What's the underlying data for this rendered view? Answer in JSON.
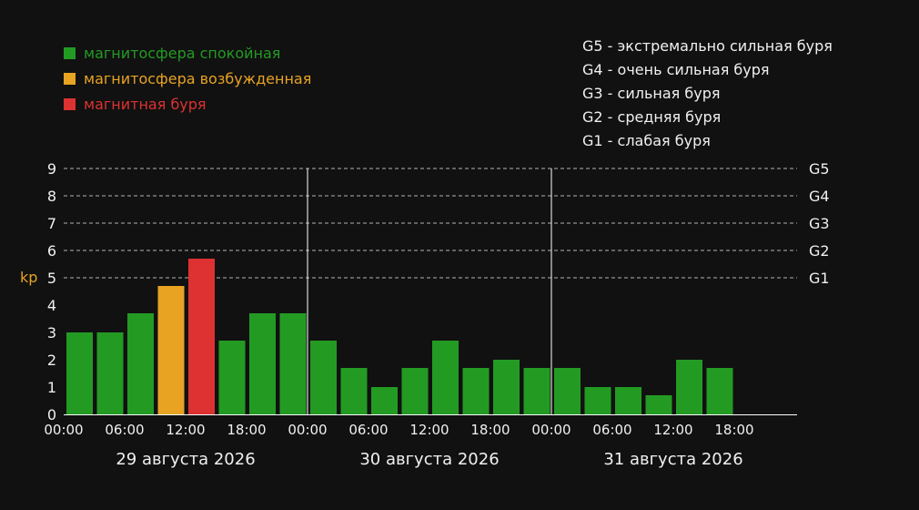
{
  "legend": [
    {
      "label": "магнитосфера спокойная",
      "color": "#239b23"
    },
    {
      "label": "магнитосфера возбужденная",
      "color": "#e8a323"
    },
    {
      "label": "магнитная буря",
      "color": "#de3131"
    }
  ],
  "storm_scale": [
    {
      "level": "G5",
      "text": "G5 - экстремально сильная буря"
    },
    {
      "level": "G4",
      "text": "G4 - очень сильная буря"
    },
    {
      "level": "G3",
      "text": "G3 - сильная буря"
    },
    {
      "level": "G2",
      "text": "G2 - средняя буря"
    },
    {
      "level": "G1",
      "text": "G1 - слабая буря"
    }
  ],
  "chart_data": {
    "type": "bar",
    "ylabel": "kp",
    "ylim": [
      0,
      9
    ],
    "yticks": [
      "0",
      "1",
      "2",
      "3",
      "4",
      "5",
      "6",
      "7",
      "8",
      "9"
    ],
    "right_ticks": [
      {
        "value": 5,
        "label": "G1"
      },
      {
        "value": 6,
        "label": "G2"
      },
      {
        "value": 7,
        "label": "G3"
      },
      {
        "value": 8,
        "label": "G4"
      },
      {
        "value": 9,
        "label": "G5"
      }
    ],
    "grid": "dashed horizontal at kp 5–9",
    "days": [
      "29 августа 2026",
      "30 августа 2026",
      "31 августа 2026"
    ],
    "time_ticks": [
      "00:00",
      "06:00",
      "12:00",
      "18:00"
    ],
    "slots_per_day": 8,
    "values": [
      3.0,
      3.0,
      3.7,
      4.7,
      5.7,
      2.7,
      3.7,
      3.7,
      2.7,
      1.7,
      1.0,
      1.7,
      2.7,
      1.7,
      2.0,
      1.7,
      1.7,
      1.0,
      1.0,
      0.7,
      2.0,
      1.7
    ],
    "status": [
      "calm",
      "calm",
      "calm",
      "excited",
      "storm",
      "calm",
      "calm",
      "calm",
      "calm",
      "calm",
      "calm",
      "calm",
      "calm",
      "calm",
      "calm",
      "calm",
      "calm",
      "calm",
      "calm",
      "calm",
      "calm",
      "calm"
    ],
    "colors": {
      "calm": "#239b23",
      "excited": "#e8a323",
      "storm": "#de3131",
      "text": "#f0f0f0",
      "ylabel": "#e8a323",
      "grid": "#cfcfcf"
    }
  }
}
